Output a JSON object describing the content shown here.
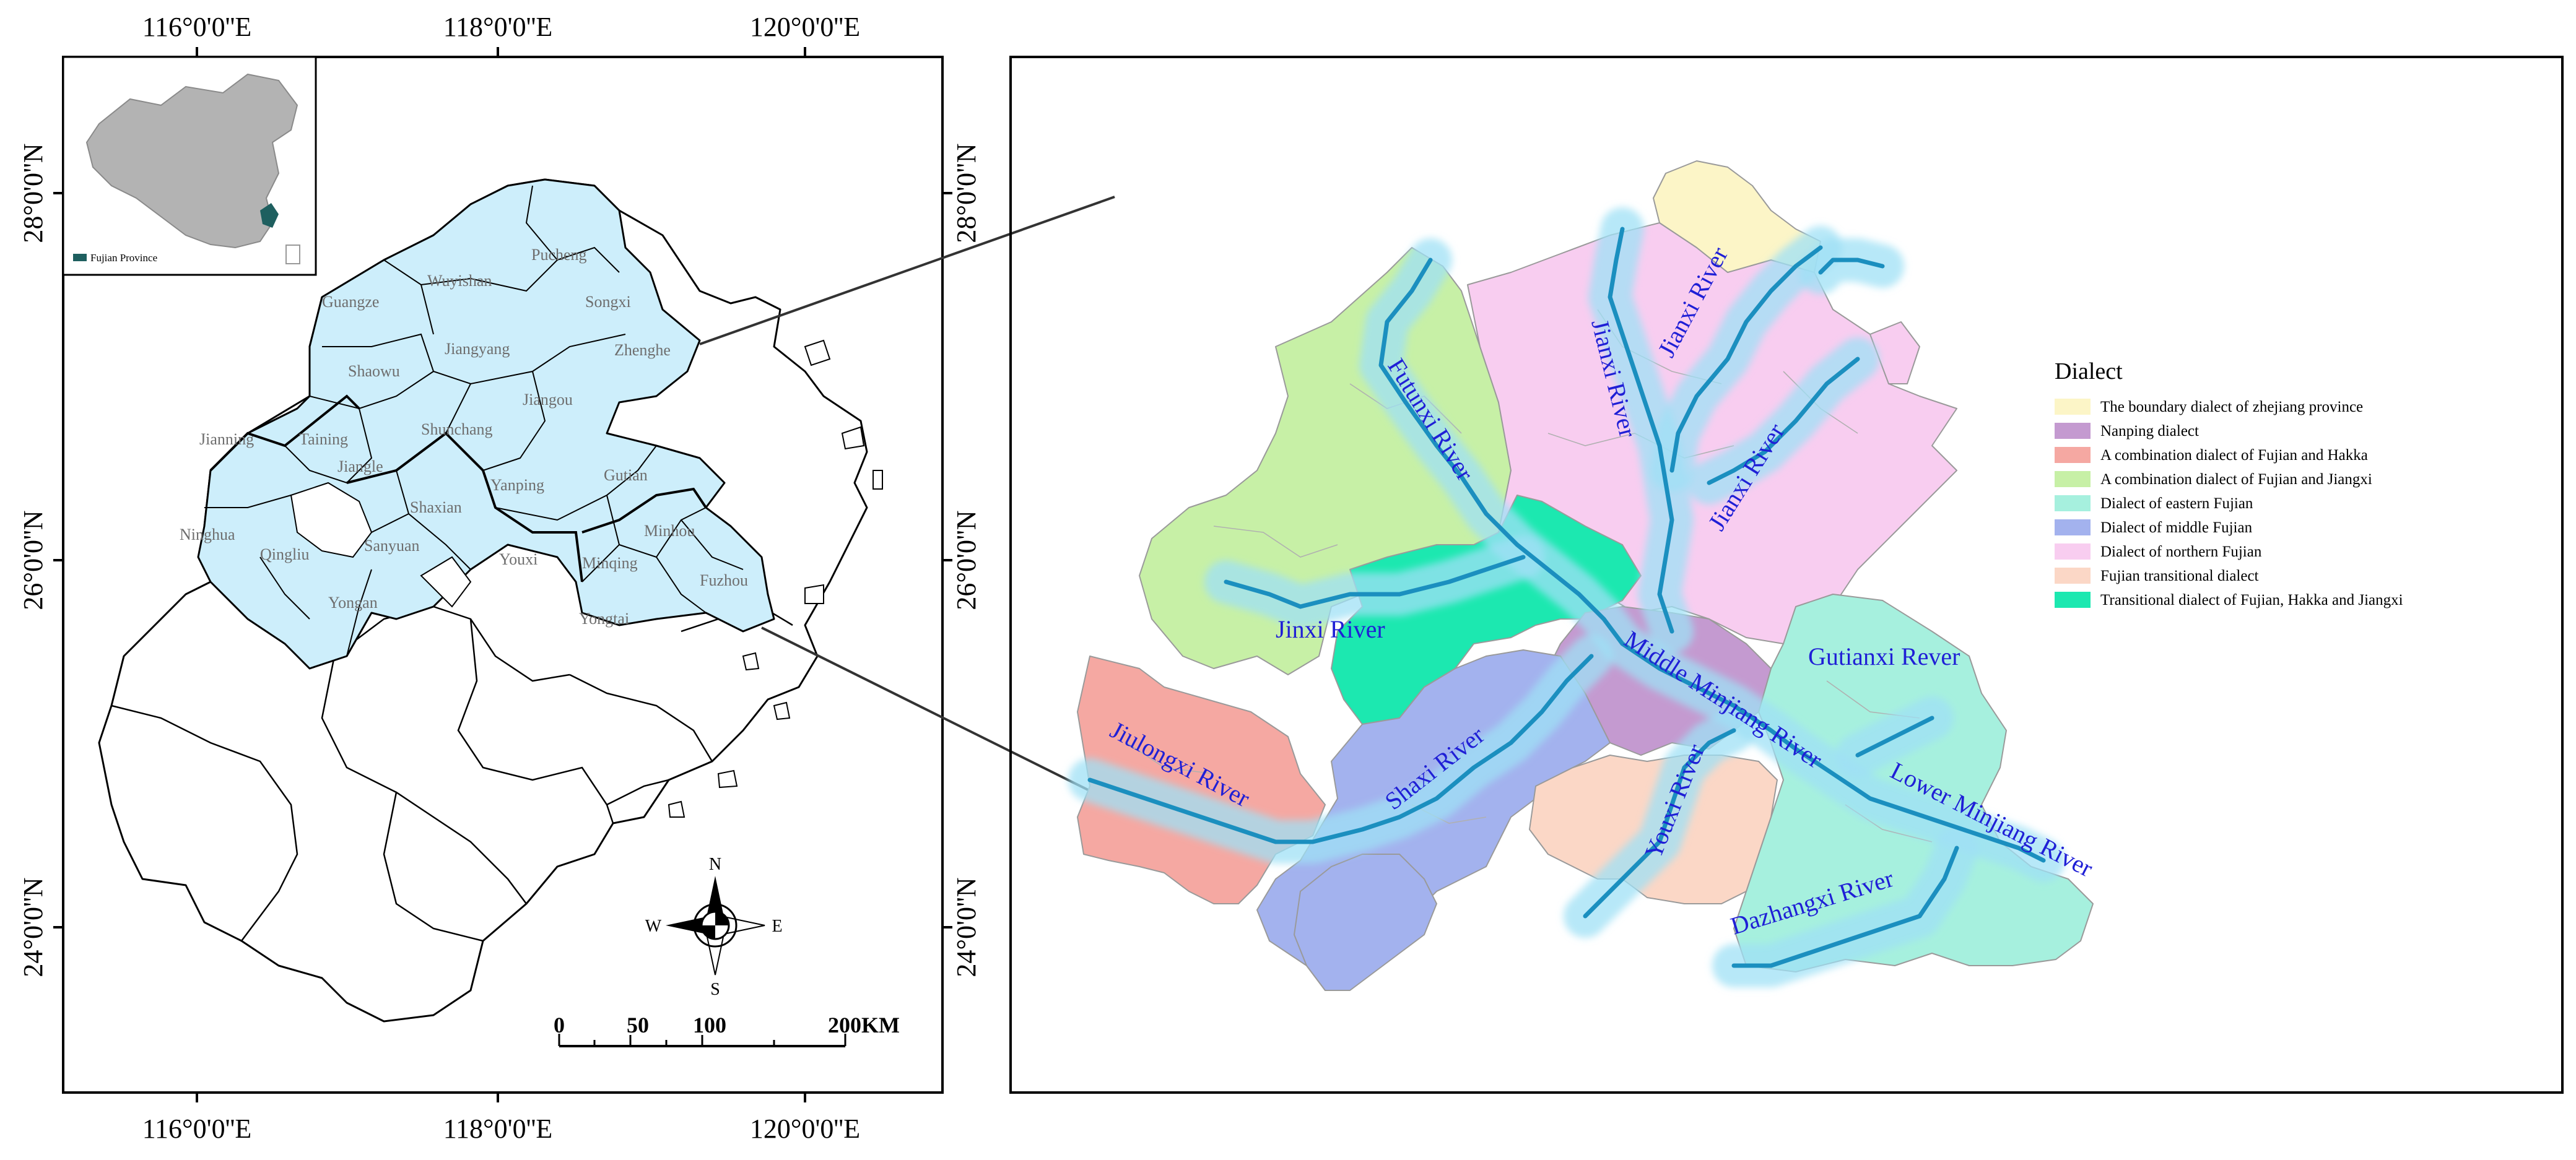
{
  "left_map": {
    "lon_labels_top": [
      "116°0'0''E",
      "118°0'0''E",
      "120°0'0''E"
    ],
    "lon_labels_bottom": [
      "116°0'0''E",
      "118°0'0''E",
      "120°0'0''E"
    ],
    "lat_labels": [
      "28°0'0''N",
      "26°0'0''N",
      "24°0'0''N"
    ],
    "counties": [
      "Pucheng",
      "Guangze",
      "Wuyishan",
      "Songxi",
      "Zhenghe",
      "Jiangyang",
      "Shaowu",
      "Jiangou",
      "Jianning",
      "Taining",
      "Shunchang",
      "Jiangle",
      "Gutian",
      "Yanping",
      "Shaxian",
      "Minhou",
      "Ninghua",
      "Qingliu",
      "Sanyuan",
      "Youxi",
      "Minqing",
      "Fuzhou",
      "Yongan",
      "Yongtai"
    ],
    "inset_label": "Fujian Province",
    "compass": {
      "n": "N",
      "s": "S",
      "e": "E",
      "w": "W"
    },
    "scale_bar": {
      "ticks": [
        "0",
        "50",
        "100",
        "200KM"
      ]
    }
  },
  "right_map": {
    "lat_labels": [
      "28°0'0''N",
      "26°0'0''N",
      "24°0'0''N"
    ],
    "rivers": [
      "Futunxi River",
      "Jianxi River",
      "Jianxi River",
      "Jianxi River",
      "Jinxi River",
      "Middle Minjiang River",
      "Gutianxi Rever",
      "Jiulongxi River",
      "Shaxi River",
      "Youxi River",
      "Lower Minjiang River",
      "Dazhangxi River"
    ],
    "legend": {
      "title": "Dialect",
      "items": [
        {
          "label": "The boundary dialect of zhejiang province",
          "color": "#fcf5c7"
        },
        {
          "label": "Nanping dialect",
          "color": "#c49ad0"
        },
        {
          "label": "A combination dialect of Fujian and Hakka",
          "color": "#f5a8a2"
        },
        {
          "label": "A combination dialect of Fujian and Jiangxi",
          "color": "#c7f0a6"
        },
        {
          "label": "Dialect of eastern Fujian",
          "color": "#a6f0de"
        },
        {
          "label": "Dialect of middle Fujian",
          "color": "#a3b2ee"
        },
        {
          "label": "Dialect of northern Fujian",
          "color": "#f8cdf0"
        },
        {
          "label": "Fujian transitional dialect",
          "color": "#fbd7c6"
        },
        {
          "label": "Transitional dialect of Fujian, Hakka and Jiangxi",
          "color": "#1ce8b0"
        }
      ]
    }
  },
  "colors": {
    "study_area": "#cdeefb",
    "river_line": "#1b8fbf",
    "river_buffer": "#9fe0f5",
    "river_label": "#1f1fd6",
    "inset_fujian": "#1e5f5f"
  }
}
